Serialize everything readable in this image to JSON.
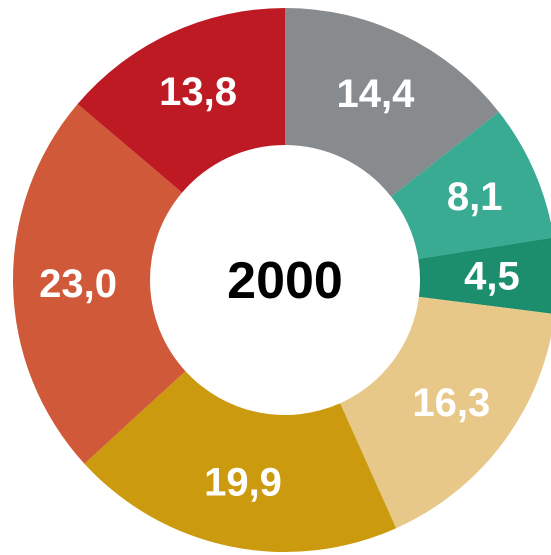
{
  "chart_data": {
    "type": "donut",
    "center_label": "2000",
    "values": [
      14.4,
      8.1,
      4.5,
      16.3,
      19.9,
      23.0,
      13.8
    ],
    "value_labels": [
      "14,4",
      "8,1",
      "4,5",
      "16,3",
      "19,9",
      "23,0",
      "13,8"
    ],
    "colors": [
      "#878b8e",
      "#38ab92",
      "#1d8e6d",
      "#e8c889",
      "#cc9a0f",
      "#d0593a",
      "#bd1a23"
    ]
  }
}
